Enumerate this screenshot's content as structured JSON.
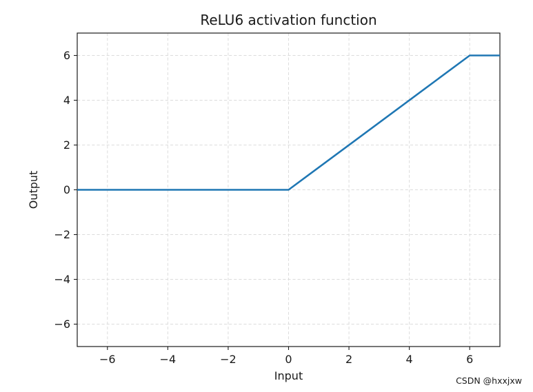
{
  "chart_data": {
    "type": "line",
    "title": "ReLU6 activation function",
    "xlabel": "Input",
    "ylabel": "Output",
    "xlim": [
      -7,
      7
    ],
    "ylim": [
      -7,
      7
    ],
    "xticks": [
      -6,
      -4,
      -2,
      0,
      2,
      4,
      6
    ],
    "xtick_labels": [
      "−6",
      "−4",
      "−2",
      "0",
      "2",
      "4",
      "6"
    ],
    "yticks": [
      -6,
      -4,
      -2,
      0,
      2,
      4,
      6
    ],
    "ytick_labels": [
      "−6",
      "−4",
      "−2",
      "0",
      "2",
      "4",
      "6"
    ],
    "grid": true,
    "grid_style": "dashed",
    "legend": "none",
    "series": [
      {
        "name": "ReLU6",
        "color": "#1f77b4",
        "x": [
          -7,
          0,
          6,
          7
        ],
        "y": [
          0,
          0,
          6,
          6
        ]
      }
    ]
  },
  "watermark": {
    "text": "CSDN @hxxjxw",
    "color": "#c5c5c5"
  },
  "colors": {
    "line": "#1f77b4",
    "grid": "#dcdcdc",
    "spine": "#1a1a1a",
    "text": "#1a1a1a",
    "background": "#ffffff"
  }
}
